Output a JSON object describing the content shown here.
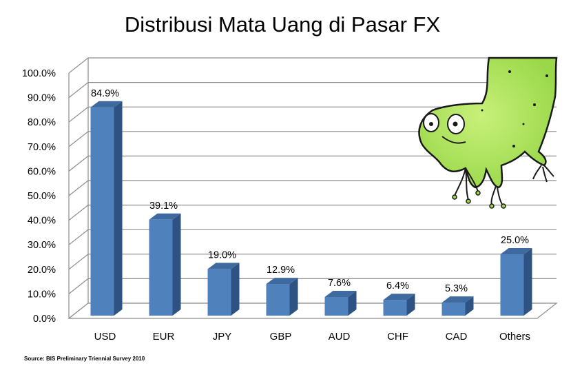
{
  "chart_data": {
    "type": "bar",
    "title": "Distribusi Mata Uang di Pasar FX",
    "categories": [
      "USD",
      "EUR",
      "JPY",
      "GBP",
      "AUD",
      "CHF",
      "CAD",
      "Others"
    ],
    "values": [
      84.9,
      39.1,
      19.0,
      12.9,
      7.6,
      6.4,
      5.3,
      25.0
    ],
    "data_labels": [
      "84.9%",
      "39.1%",
      "19.0%",
      "12.9%",
      "7.6%",
      "6.4%",
      "5.3%",
      "25.0%"
    ],
    "yticks": [
      "0.0%",
      "10.0%",
      "20.0%",
      "30.0%",
      "40.0%",
      "50.0%",
      "60.0%",
      "70.0%",
      "80.0%",
      "90.0%",
      "100.0%"
    ],
    "ylim": [
      0,
      100
    ],
    "grid": true,
    "legend": "none",
    "bar_color": "#4f81bd",
    "source": "Source: BIS Preliminary Triennial Survey  2010"
  }
}
